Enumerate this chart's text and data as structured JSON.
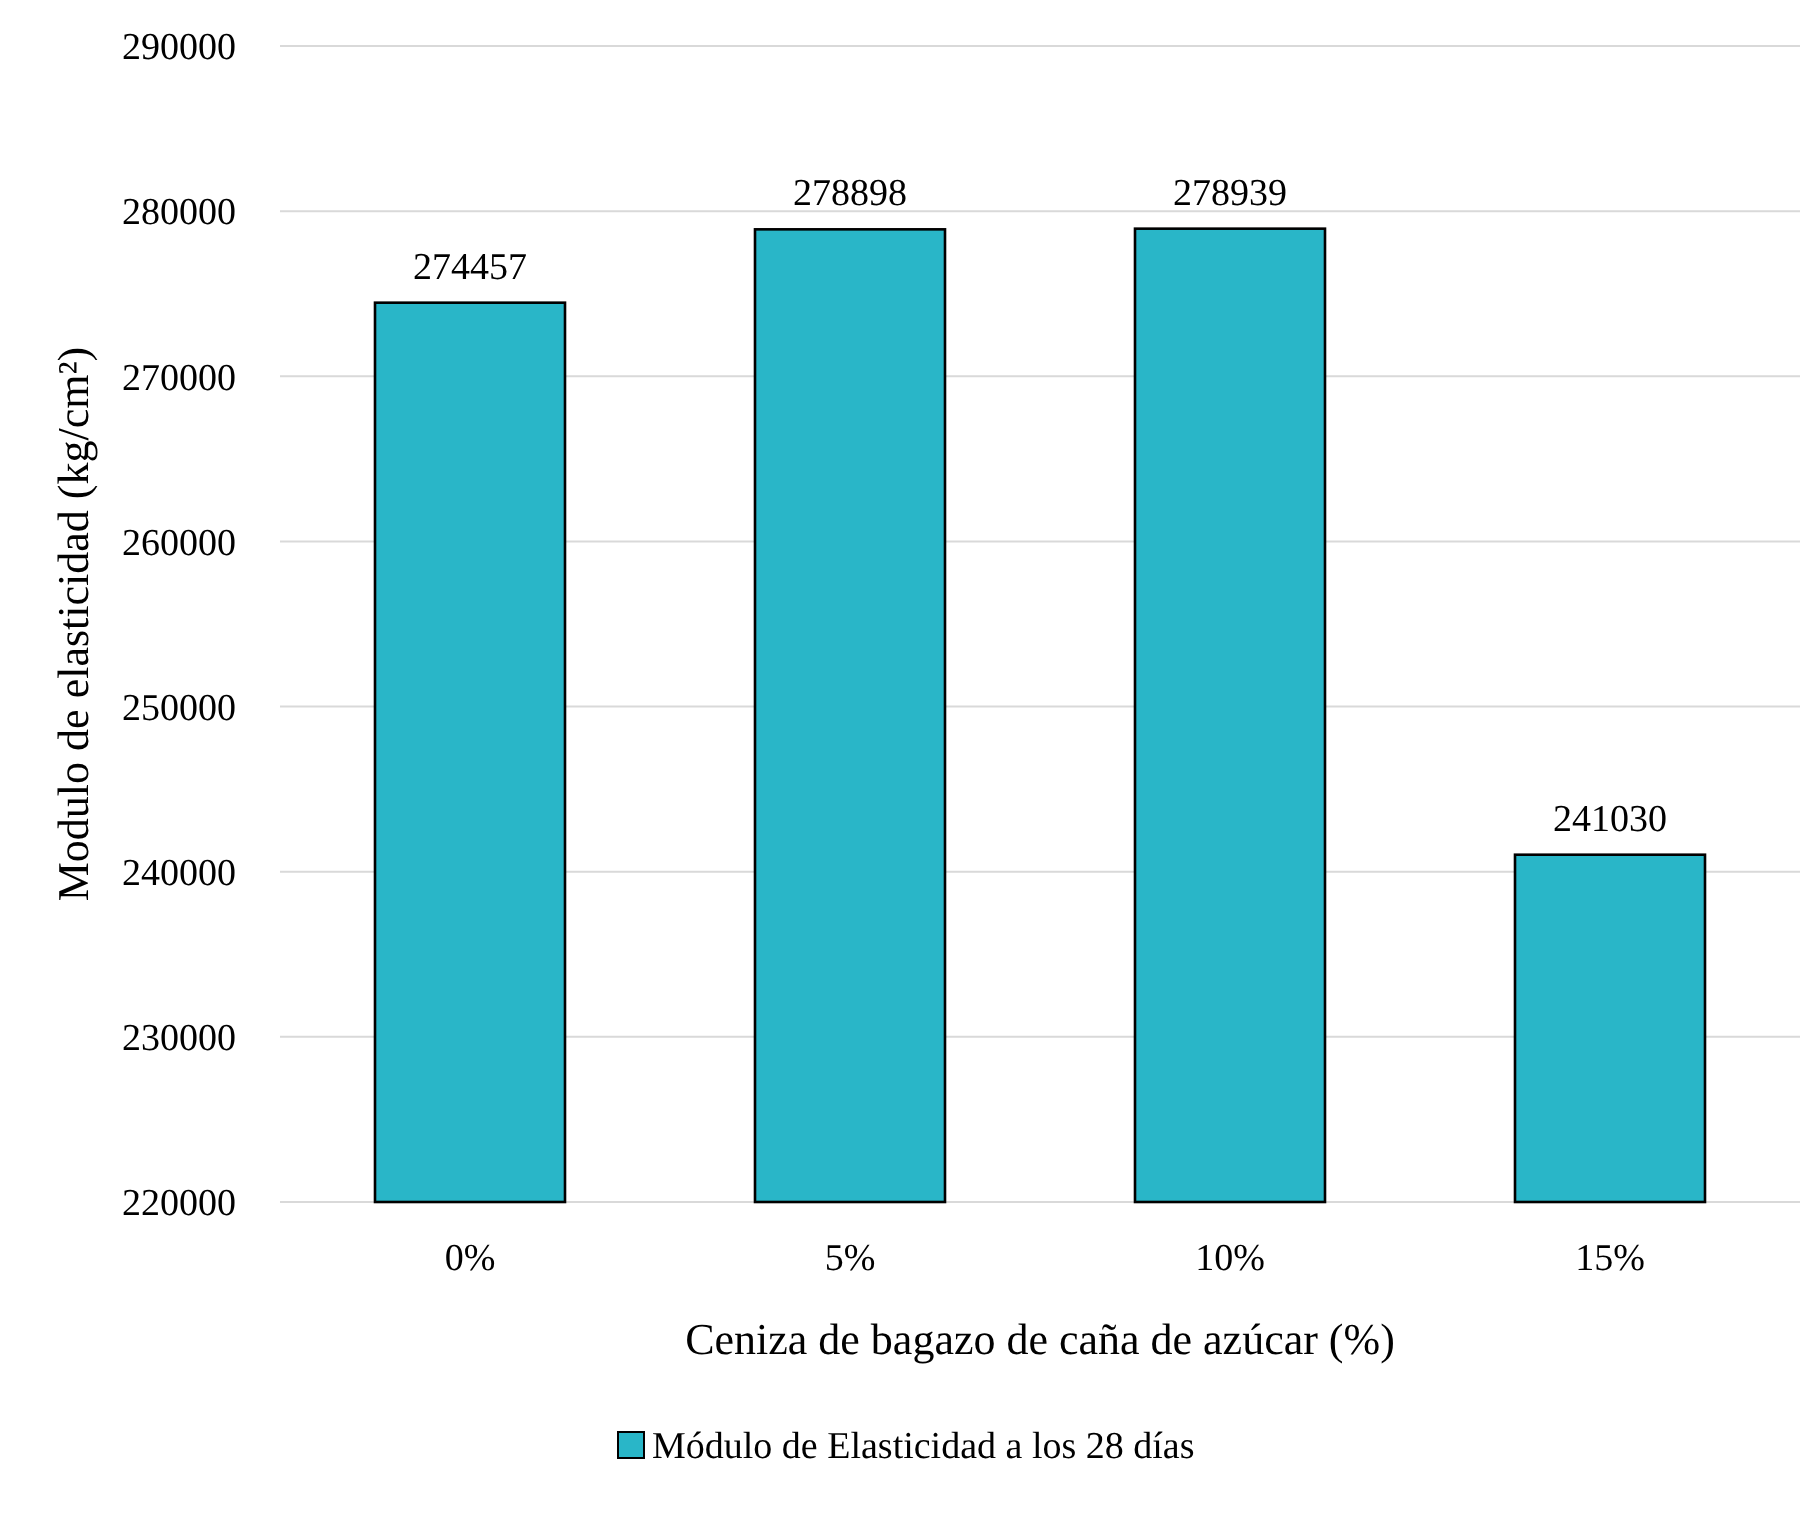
{
  "chart_data": {
    "type": "bar",
    "xlabel": "Ceniza de bagazo de caña de azúcar (%)",
    "ylabel": "Modulo de elasticidad (kg/cm²)",
    "categories": [
      "0%",
      "5%",
      "10%",
      "15%"
    ],
    "series": [
      {
        "name": "Módulo de Elasticidad a los 28 días",
        "color": "#29b6c8",
        "values": [
          274457,
          278898,
          278939,
          241030
        ]
      }
    ],
    "ylim": [
      220000,
      290000
    ],
    "yticks": [
      220000,
      230000,
      240000,
      250000,
      260000,
      270000,
      280000,
      290000
    ],
    "grid": "y",
    "legend": "bottom",
    "data_labels": true
  }
}
